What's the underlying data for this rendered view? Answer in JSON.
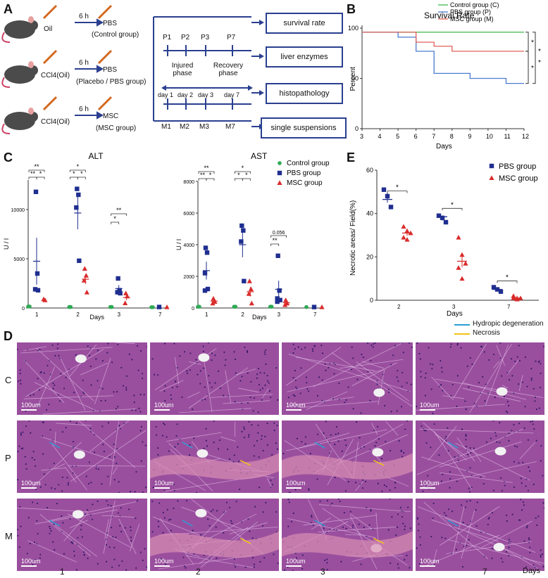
{
  "panels": {
    "a": "A",
    "b": "B",
    "c": "C",
    "d": "D",
    "e": "E"
  },
  "panel_a": {
    "groups": [
      {
        "treatment": "Oil",
        "time": "6 h",
        "injection": "PBS",
        "group_name": "(Control group)"
      },
      {
        "treatment": "CCl4(Oil)",
        "time": "6 h",
        "injection": "PBS",
        "group_name": "(Placebo / PBS group)"
      },
      {
        "treatment": "CCl4(Oil)",
        "time": "6 h",
        "injection": "MSC",
        "group_name": "(MSC group)"
      }
    ],
    "phase_points_top": [
      "P1",
      "P2",
      "P3",
      "P7"
    ],
    "injured_phase": "Injured phase",
    "recovery_phase": "Recovery phase",
    "days": [
      "day 1",
      "day 2",
      "day 3",
      "day 7"
    ],
    "phase_points_bottom": [
      "M1",
      "M2",
      "M3",
      "M7"
    ],
    "outcomes": [
      "survival rate",
      "liver enzymes",
      "histopathology",
      "single suspensions"
    ]
  },
  "colors": {
    "control": "#2eaa55",
    "pbs": "#1f2e8f",
    "msc": "#d92b2b",
    "survival_control": "#3cb84a",
    "survival_pbs": "#4a7bd0",
    "survival_msc": "#e0605a",
    "box": "#2a3f8f",
    "hydropic": "#2a9fd6",
    "necrosis": "#f2c414"
  },
  "chart_data": [
    {
      "id": "survival",
      "type": "line",
      "title": "Survival Rate",
      "xlabel": "Days",
      "ylabel": "Percent",
      "xlim": [
        3,
        12
      ],
      "ylim": [
        0,
        100
      ],
      "xticks": [
        3,
        4,
        5,
        6,
        7,
        8,
        9,
        10,
        11,
        12
      ],
      "yticks": [
        0,
        50,
        100
      ],
      "legend_position": "top-right",
      "series": [
        {
          "name": "Control group (C)",
          "color": "#3cb84a",
          "x": [
            3,
            12
          ],
          "y": [
            96,
            96
          ]
        },
        {
          "name": "PBS group (P)",
          "color": "#4a7bd0",
          "x": [
            3,
            5,
            5,
            6,
            6,
            7,
            7,
            9,
            9,
            11,
            11,
            12
          ],
          "y": [
            96,
            96,
            91,
            91,
            77,
            77,
            55,
            55,
            50,
            50,
            45,
            45
          ]
        },
        {
          "name": "MSC group (M)",
          "color": "#e0605a",
          "x": [
            3,
            6,
            6,
            7,
            7,
            8,
            8,
            12
          ],
          "y": [
            96,
            96,
            86,
            86,
            82,
            82,
            77,
            77
          ]
        }
      ],
      "significance": [
        "*",
        "*",
        "*",
        "*"
      ]
    },
    {
      "id": "alt",
      "type": "scatter",
      "title": "ALT",
      "xlabel": "Days",
      "ylabel": "U / l",
      "categories": [
        "1",
        "2",
        "3",
        "7"
      ],
      "ylim": [
        0,
        13000
      ],
      "yticks": [
        0,
        5000,
        10000
      ],
      "series": [
        {
          "name": "Control group",
          "color": "#2eaa55",
          "points": [
            [
              0,
              150
            ],
            [
              0,
              150
            ],
            [
              1,
              100
            ],
            [
              1,
              100
            ],
            [
              2,
              100
            ],
            [
              2,
              100
            ],
            [
              3,
              80
            ],
            [
              3,
              80
            ]
          ]
        },
        {
          "name": "PBS group",
          "color": "#1f2e8f",
          "points": [
            [
              0,
              11800
            ],
            [
              0,
              3500
            ],
            [
              0,
              1900
            ],
            [
              0,
              1800
            ],
            [
              1,
              12100
            ],
            [
              1,
              11500
            ],
            [
              1,
              10200
            ],
            [
              1,
              4800
            ],
            [
              2,
              3000
            ],
            [
              2,
              1800
            ],
            [
              2,
              1600
            ],
            [
              2,
              1500
            ],
            [
              3,
              100
            ]
          ]
        },
        {
          "name": "MSC group",
          "color": "#d92b2b",
          "points": [
            [
              0,
              900
            ],
            [
              0,
              800
            ],
            [
              1,
              4000
            ],
            [
              1,
              3300
            ],
            [
              1,
              2800
            ],
            [
              1,
              1600
            ],
            [
              2,
              1500
            ],
            [
              2,
              1200
            ],
            [
              2,
              500
            ],
            [
              3,
              100
            ]
          ]
        }
      ],
      "significance": [
        "**",
        "**",
        "*",
        "*",
        "*",
        "*",
        "*",
        "**"
      ]
    },
    {
      "id": "ast",
      "type": "scatter",
      "title": "AST",
      "xlabel": "Days",
      "ylabel": "U / l",
      "categories": [
        "1",
        "2",
        "3",
        "7"
      ],
      "ylim": [
        0,
        8000
      ],
      "yticks": [
        0,
        2000,
        4000,
        6000,
        8000
      ],
      "legend_position": "top-right",
      "series": [
        {
          "name": "Control group",
          "color": "#2eaa55",
          "points": [
            [
              0,
              80
            ],
            [
              0,
              80
            ],
            [
              1,
              80
            ],
            [
              1,
              80
            ],
            [
              2,
              80
            ],
            [
              2,
              80
            ],
            [
              3,
              60
            ]
          ]
        },
        {
          "name": "PBS group",
          "color": "#1f2e8f",
          "points": [
            [
              0,
              3800
            ],
            [
              0,
              3500
            ],
            [
              0,
              2200
            ],
            [
              0,
              1200
            ],
            [
              0,
              1100
            ],
            [
              1,
              5200
            ],
            [
              1,
              4900
            ],
            [
              1,
              4200
            ],
            [
              1,
              1700
            ],
            [
              2,
              3300
            ],
            [
              2,
              1100
            ],
            [
              2,
              600
            ],
            [
              2,
              500
            ],
            [
              2,
              400
            ],
            [
              3,
              60
            ]
          ]
        },
        {
          "name": "MSC group",
          "color": "#d92b2b",
          "points": [
            [
              0,
              600
            ],
            [
              0,
              400
            ],
            [
              0,
              300
            ],
            [
              1,
              1700
            ],
            [
              1,
              1200
            ],
            [
              1,
              900
            ],
            [
              1,
              300
            ],
            [
              2,
              500
            ],
            [
              2,
              300
            ],
            [
              2,
              200
            ],
            [
              3,
              60
            ]
          ]
        }
      ],
      "significance": [
        "**",
        "**",
        "*",
        "*",
        "*",
        "*",
        "**",
        "0.056"
      ]
    },
    {
      "id": "necrosis",
      "type": "scatter",
      "xlabel": "Days",
      "ylabel": "Necrotic areas/ Field(%)",
      "categories": [
        "2",
        "3",
        "7"
      ],
      "ylim": [
        0,
        60
      ],
      "yticks": [
        0,
        20,
        40,
        60
      ],
      "legend_position": "top-right",
      "series": [
        {
          "name": "PBS  group",
          "color": "#1f2e8f",
          "mean": [
            46.5,
            38.5,
            5
          ],
          "points": [
            [
              0,
              51
            ],
            [
              0,
              48
            ],
            [
              0,
              43
            ],
            [
              1,
              39
            ],
            [
              1,
              38
            ],
            [
              1,
              36
            ],
            [
              2,
              6
            ],
            [
              2,
              5
            ],
            [
              2,
              4
            ]
          ]
        },
        {
          "name": "MSC  group",
          "color": "#d92b2b",
          "mean": [
            31,
            18,
            1
          ],
          "points": [
            [
              0,
              34
            ],
            [
              0,
              32
            ],
            [
              0,
              31
            ],
            [
              0,
              29
            ],
            [
              0,
              28
            ],
            [
              1,
              29
            ],
            [
              1,
              21
            ],
            [
              1,
              17
            ],
            [
              1,
              15
            ],
            [
              1,
              10
            ],
            [
              2,
              2
            ],
            [
              2,
              1
            ],
            [
              2,
              1
            ],
            [
              2,
              1
            ],
            [
              2,
              0.5
            ]
          ]
        }
      ],
      "significance": [
        "*",
        "*",
        "*"
      ]
    }
  ],
  "panel_d": {
    "rows": [
      "C",
      "P",
      "M"
    ],
    "cols": [
      "1",
      "2",
      "3",
      "7"
    ],
    "days_label": "Days",
    "scale_bar": "100um",
    "legend": [
      {
        "label": "Hydropic degeneration",
        "color": "#2a9fd6"
      },
      {
        "label": "Necrosis",
        "color": "#f2c414"
      }
    ]
  }
}
